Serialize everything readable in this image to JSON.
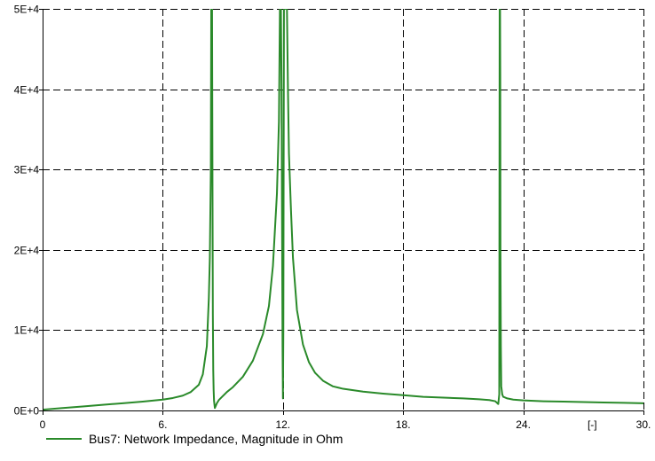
{
  "chart_data": {
    "type": "line",
    "title": "",
    "xlabel": "",
    "x_unit_label": "[-]",
    "ylabel": "",
    "xlim": [
      0,
      30
    ],
    "ylim": [
      0,
      50000
    ],
    "x_ticks": [
      {
        "value": 0,
        "label": "0"
      },
      {
        "value": 6,
        "label": "6."
      },
      {
        "value": 12,
        "label": "12."
      },
      {
        "value": 18,
        "label": "18."
      },
      {
        "value": 24,
        "label": "24."
      },
      {
        "value": 30,
        "label": "30."
      }
    ],
    "y_ticks": [
      {
        "value": 0,
        "label": "0E+0"
      },
      {
        "value": 10000,
        "label": "1E+4"
      },
      {
        "value": 20000,
        "label": "2E+4"
      },
      {
        "value": 30000,
        "label": "3E+4"
      },
      {
        "value": 40000,
        "label": "4E+4"
      },
      {
        "value": 50000,
        "label": "5E+4"
      }
    ],
    "grid": true,
    "grid_style": "dashed",
    "legend_position": "bottom-left",
    "series": [
      {
        "name": "Bus7: Network Impedance, Magnitude in Ohm",
        "color": "#2a8a2a",
        "x": [
          0,
          1,
          2,
          3,
          4,
          5,
          6,
          6.5,
          7,
          7.4,
          7.8,
          8.0,
          8.2,
          8.3,
          8.35,
          8.4,
          8.42,
          8.44,
          8.46,
          8.48,
          8.5,
          8.52,
          8.54,
          8.56,
          8.6,
          8.65,
          8.7,
          8.8,
          9.0,
          9.2,
          9.5,
          10.0,
          10.5,
          11.0,
          11.3,
          11.5,
          11.7,
          11.8,
          11.85,
          11.9,
          11.93,
          11.96,
          11.98,
          12.0,
          12.02,
          12.05,
          12.08,
          12.1,
          12.15,
          12.2,
          12.25,
          12.3,
          12.4,
          12.5,
          12.7,
          13.0,
          13.3,
          13.6,
          14.0,
          14.5,
          15.0,
          16.0,
          17.0,
          18.0,
          19.0,
          20.0,
          21.0,
          21.8,
          22.3,
          22.6,
          22.75,
          22.8,
          22.82,
          22.84,
          22.85,
          22.86,
          22.88,
          22.9,
          22.95,
          23.0,
          23.2,
          23.5,
          24.0,
          25.0,
          26.0,
          27.0,
          28.0,
          29.0,
          30.0
        ],
        "y": [
          100,
          300,
          500,
          700,
          900,
          1100,
          1350,
          1550,
          1850,
          2300,
          3200,
          4500,
          8000,
          14000,
          19000,
          30000,
          50000,
          50000,
          50000,
          30000,
          12000,
          5000,
          2500,
          1200,
          300,
          600,
          900,
          1300,
          1800,
          2300,
          2900,
          4200,
          6200,
          9500,
          13000,
          18000,
          27000,
          36000,
          50000,
          50000,
          40000,
          20000,
          8000,
          1500,
          10000,
          50000,
          50000,
          50000,
          50000,
          50000,
          40000,
          32000,
          25000,
          19000,
          12500,
          8200,
          6000,
          4700,
          3700,
          3000,
          2700,
          2350,
          2100,
          1900,
          1700,
          1600,
          1500,
          1400,
          1300,
          1150,
          800,
          2000,
          50000,
          50000,
          42000,
          20000,
          8000,
          3000,
          2000,
          1700,
          1500,
          1350,
          1250,
          1150,
          1100,
          1050,
          1000,
          950,
          900
        ]
      }
    ]
  }
}
